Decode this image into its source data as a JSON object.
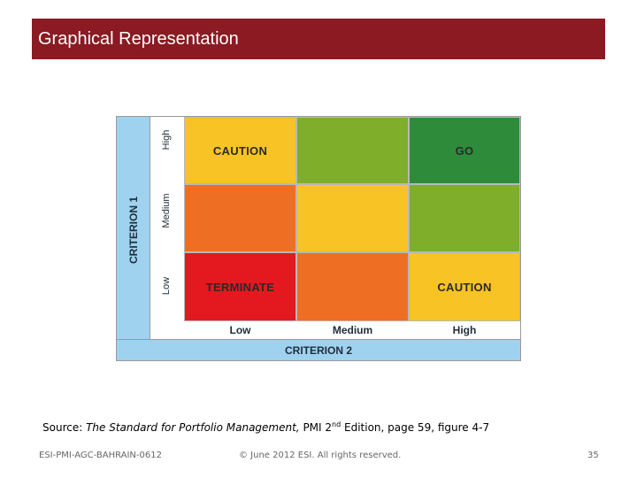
{
  "slide": {
    "title": "Graphical Representation"
  },
  "matrix": {
    "y_axis_label": "CRITERION 1",
    "x_axis_label": "CRITERION 2",
    "row_labels": [
      "High",
      "Medium",
      "Low"
    ],
    "col_labels": [
      "Low",
      "Medium",
      "High"
    ],
    "cells": [
      [
        {
          "label": "CAUTION",
          "color": "#f7c325"
        },
        {
          "label": "",
          "color": "#7fae2b"
        },
        {
          "label": "GO",
          "color": "#2e8b3a"
        }
      ],
      [
        {
          "label": "",
          "color": "#ee6f24"
        },
        {
          "label": "",
          "color": "#f7c325"
        },
        {
          "label": "",
          "color": "#7fae2b"
        }
      ],
      [
        {
          "label": "TERMINATE",
          "color": "#e3191f"
        },
        {
          "label": "",
          "color": "#ee6f24"
        },
        {
          "label": "CAUTION",
          "color": "#f7c325"
        }
      ]
    ]
  },
  "source": {
    "prefix": "Source: ",
    "work_title": "The Standard for Portfolio Management,",
    "edition_pre": " PMI 2",
    "edition_sup": "nd",
    "edition_post": " Edition, page 59, figure 4-7"
  },
  "footer": {
    "left": "ESI-PMI-AGC-BAHRAIN-0612",
    "center": "© June 2012 ESI. All rights reserved.",
    "page_number": "35"
  }
}
